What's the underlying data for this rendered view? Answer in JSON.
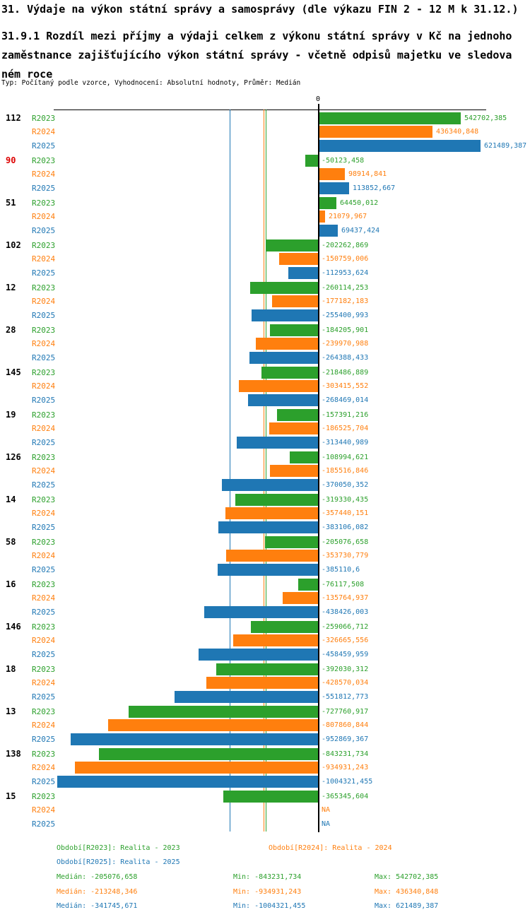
{
  "header": {
    "title": "31. Výdaje na výkon státní správy a samosprávy (dle výkazu FIN 2 - 12 M k 31.12.)",
    "subtitle": "31.9.1 Rozdíl mezi příjmy a výdaji celkem z výkonu státní správy v Kč na jednoho zaměstnance zajišťujícího výkon státní správy - včetně odpisů majetku ve sledovaném roce",
    "meta": "Typ: Počítaný podle vzorce, Vyhodnocení: Absolutní hodnoty, Průměr: Medián"
  },
  "chart_data": {
    "type": "bar",
    "orientation": "horizontal",
    "title": "31.9.1 Rozdíl mezi příjmy a výdaji celkem z výkonu státní správy v Kč na jednoho zaměstnance zajišťujícího výkon státní správy - včetně odpisů majetku ve sledovaném roce",
    "xlabel": "",
    "ylabel": "",
    "xlim": [
      -1020000,
      645000
    ],
    "grid": false,
    "zero_label": "0",
    "na_label": "NA",
    "series_names": [
      "R2023",
      "R2024",
      "R2025"
    ],
    "series_colors": {
      "R2023": "#2ca02c",
      "R2024": "#ff7f0e",
      "R2025": "#1f77b4"
    },
    "highlight_group_color": "#dd0000",
    "groups": [
      {
        "id": "112",
        "id_color": "#000000",
        "values": [
          542702.385,
          436340.848,
          621489.387
        ],
        "labels": [
          "542702,385",
          "436340,848",
          "621489,387"
        ]
      },
      {
        "id": "90",
        "id_color": "#dd0000",
        "values": [
          -50123.458,
          98914.841,
          113852.667
        ],
        "labels": [
          "-50123,458",
          "98914,841",
          "113852,667"
        ]
      },
      {
        "id": "51",
        "id_color": "#000000",
        "values": [
          64450.012,
          21079.967,
          69437.424
        ],
        "labels": [
          "64450,012",
          "21079,967",
          "69437,424"
        ]
      },
      {
        "id": "102",
        "id_color": "#000000",
        "values": [
          -202262.869,
          -150759.006,
          -112953.624
        ],
        "labels": [
          "-202262,869",
          "-150759,006",
          "-112953,624"
        ]
      },
      {
        "id": "12",
        "id_color": "#000000",
        "values": [
          -260114.253,
          -177182.183,
          -255400.993
        ],
        "labels": [
          "-260114,253",
          "-177182,183",
          "-255400,993"
        ]
      },
      {
        "id": "28",
        "id_color": "#000000",
        "values": [
          -184205.901,
          -239970.988,
          -264388.433
        ],
        "labels": [
          "-184205,901",
          "-239970,988",
          "-264388,433"
        ]
      },
      {
        "id": "145",
        "id_color": "#000000",
        "values": [
          -218486.889,
          -303415.552,
          -268469.014
        ],
        "labels": [
          "-218486,889",
          "-303415,552",
          "-268469,014"
        ]
      },
      {
        "id": "19",
        "id_color": "#000000",
        "values": [
          -157391.216,
          -186525.704,
          -313440.989
        ],
        "labels": [
          "-157391,216",
          "-186525,704",
          "-313440,989"
        ]
      },
      {
        "id": "126",
        "id_color": "#000000",
        "values": [
          -108994.621,
          -185516.846,
          -370050.352
        ],
        "labels": [
          "-108994,621",
          "-185516,846",
          "-370050,352"
        ]
      },
      {
        "id": "14",
        "id_color": "#000000",
        "values": [
          -319330.435,
          -357440.151,
          -383106.082
        ],
        "labels": [
          "-319330,435",
          "-357440,151",
          "-383106,082"
        ]
      },
      {
        "id": "58",
        "id_color": "#000000",
        "values": [
          -205076.658,
          -353730.779,
          -385110.6
        ],
        "labels": [
          "-205076,658",
          "-353730,779",
          "-385110,6"
        ]
      },
      {
        "id": "16",
        "id_color": "#000000",
        "values": [
          -76117.508,
          -135764.937,
          -438426.003
        ],
        "labels": [
          "-76117,508",
          "-135764,937",
          "-438426,003"
        ]
      },
      {
        "id": "146",
        "id_color": "#000000",
        "values": [
          -259066.712,
          -326665.556,
          -458459.959
        ],
        "labels": [
          "-259066,712",
          "-326665,556",
          "-458459,959"
        ]
      },
      {
        "id": "18",
        "id_color": "#000000",
        "values": [
          -392030.312,
          -428570.034,
          -551812.773
        ],
        "labels": [
          "-392030,312",
          "-428570,034",
          "-551812,773"
        ]
      },
      {
        "id": "13",
        "id_color": "#000000",
        "values": [
          -727760.917,
          -807860.844,
          -952869.367
        ],
        "labels": [
          "-727760,917",
          "-807860,844",
          "-952869,367"
        ]
      },
      {
        "id": "138",
        "id_color": "#000000",
        "values": [
          -843231.734,
          -934931.243,
          -1004321.455
        ],
        "labels": [
          "-843231,734",
          "-934931,243",
          "-1004321,455"
        ]
      },
      {
        "id": "15",
        "id_color": "#000000",
        "values": [
          -365345.604,
          null,
          null
        ],
        "labels": [
          "-365345,604",
          "NA",
          "NA"
        ]
      }
    ],
    "median_lines": [
      {
        "series": "R2023",
        "value": -205076.658,
        "color": "#2ca02c"
      },
      {
        "series": "R2024",
        "value": -213248.346,
        "color": "#ff7f0e"
      },
      {
        "series": "R2025",
        "value": -341745.671,
        "color": "#1f77b4"
      }
    ]
  },
  "footer": {
    "legend": [
      {
        "label": "Období[R2023]: Realita - 2023",
        "color": "#2ca02c"
      },
      {
        "label": "Období[R2024]: Realita - 2024",
        "color": "#ff7f0e"
      },
      {
        "label": "Období[R2025]: Realita - 2025",
        "color": "#1f77b4"
      }
    ],
    "stats": [
      {
        "median": "Medián: -205076,658",
        "min": "Min: -843231,734",
        "max": "Max: 542702,385",
        "color": "#2ca02c"
      },
      {
        "median": "Medián: -213248,346",
        "min": "Min: -934931,243",
        "max": "Max: 436340,848",
        "color": "#ff7f0e"
      },
      {
        "median": "Medián: -341745,671",
        "min": "Min: -1004321,455",
        "max": "Max: 621489,387",
        "color": "#1f77b4"
      }
    ]
  }
}
